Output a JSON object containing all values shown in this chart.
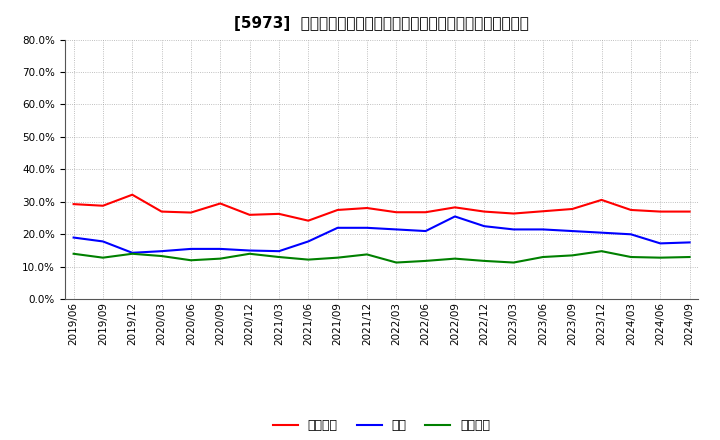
{
  "title": "[5973]  売上債権、在庫、買入債務の総資産に対する比率の推移",
  "x_labels": [
    "2019/06",
    "2019/09",
    "2019/12",
    "2020/03",
    "2020/06",
    "2020/09",
    "2020/12",
    "2021/03",
    "2021/06",
    "2021/09",
    "2021/12",
    "2022/03",
    "2022/06",
    "2022/09",
    "2022/12",
    "2023/03",
    "2023/06",
    "2023/09",
    "2023/12",
    "2024/03",
    "2024/06",
    "2024/09"
  ],
  "series": [
    {
      "name": "売上債権",
      "color": "#ff0000",
      "values": [
        0.293,
        0.288,
        0.322,
        0.27,
        0.267,
        0.295,
        0.26,
        0.263,
        0.242,
        0.275,
        0.281,
        0.268,
        0.268,
        0.283,
        0.27,
        0.264,
        0.271,
        0.278,
        0.306,
        0.275,
        0.27,
        0.27
      ]
    },
    {
      "name": "在庫",
      "color": "#0000ff",
      "values": [
        0.19,
        0.178,
        0.143,
        0.148,
        0.155,
        0.155,
        0.15,
        0.148,
        0.178,
        0.22,
        0.22,
        0.215,
        0.21,
        0.255,
        0.225,
        0.215,
        0.215,
        0.21,
        0.205,
        0.2,
        0.172,
        0.175
      ]
    },
    {
      "name": "買入債務",
      "color": "#008000",
      "values": [
        0.14,
        0.128,
        0.14,
        0.133,
        0.12,
        0.125,
        0.14,
        0.13,
        0.122,
        0.128,
        0.138,
        0.113,
        0.118,
        0.125,
        0.118,
        0.113,
        0.13,
        0.135,
        0.148,
        0.13,
        0.128,
        0.13
      ]
    }
  ],
  "ylim": [
    0.0,
    0.8
  ],
  "yticks": [
    0.0,
    0.1,
    0.2,
    0.3,
    0.4,
    0.5,
    0.6,
    0.7,
    0.8
  ],
  "background_color": "#ffffff",
  "grid_color": "#888888",
  "title_fontsize": 11,
  "tick_fontsize": 7.5,
  "legend_fontsize": 9
}
